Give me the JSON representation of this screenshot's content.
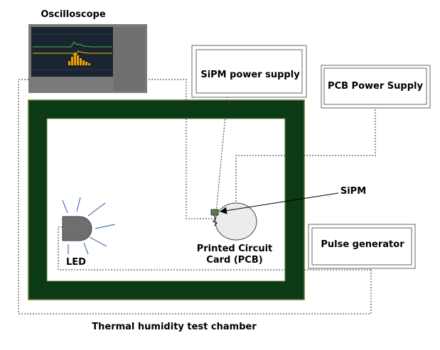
{
  "labels": {
    "oscilloscope": "Oscilloscope",
    "sipm_power_supply": "SiPM power supply",
    "pcb_power_supply": "PCB Power Supply",
    "sipm": "SiPM",
    "pcb_line1": "Printed Circuit",
    "pcb_line2": "Card (PCB)",
    "pulse_generator": "Pulse generator",
    "led": "LED",
    "chamber": "Thermal humidity test chamber"
  },
  "colors": {
    "chamber_wall": "#0c3a14",
    "chamber_border": "#5f7a32",
    "inner_bg": "#ffffff",
    "scope_frame": "#7a7a7a",
    "scope_screen": "#1b2431",
    "scope_trace_green": "#35c23d",
    "scope_trace_yellow": "#e3c800",
    "scope_histogram": "#f0a000",
    "led_fill": "#6e6e6e",
    "led_rays": "#4d78b3",
    "pcb_fill": "#ececec",
    "wire": "#333333"
  },
  "icons": {
    "led": "led-dome-icon",
    "pcb": "pcb-ellipse-icon",
    "sipm": "sipm-chip-icon",
    "scope": "oscilloscope-screen-icon"
  }
}
